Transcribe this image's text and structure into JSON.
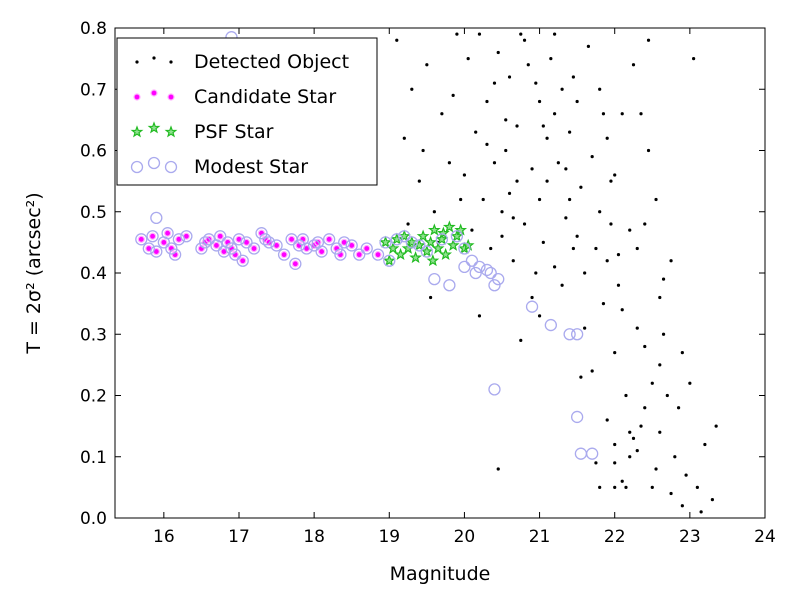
{
  "chart_data": {
    "type": "scatter",
    "x_label": "Magnitude",
    "y_label": "T = 2σ² (arcsec²)",
    "xlim": [
      15.35,
      24
    ],
    "ylim": [
      0,
      0.8
    ],
    "xticks": [
      16,
      17,
      18,
      19,
      20,
      21,
      22,
      23,
      24
    ],
    "yticks": [
      {
        "value": 0,
        "label": "0.0"
      },
      0.1,
      0.2,
      0.3,
      0.4,
      0.5,
      0.6,
      0.7,
      0.8
    ],
    "legend": "upper left",
    "series": [
      {
        "name": "Detected Object",
        "color": "#000000",
        "marker": "dot",
        "x": [
          19.1,
          19.2,
          19.3,
          19.4,
          19.5,
          19.6,
          19.7,
          19.8,
          19.9,
          19.95,
          19.25,
          19.45,
          19.65,
          19.85,
          20.0,
          20.05,
          20.1,
          20.15,
          20.2,
          20.25,
          20.3,
          20.35,
          20.4,
          20.45,
          20.5,
          20.55,
          20.6,
          20.65,
          20.7,
          20.75,
          20.3,
          20.4,
          20.5,
          20.6,
          20.7,
          20.8,
          20.85,
          20.9,
          20.95,
          21.0,
          20.8,
          20.9,
          21.0,
          21.05,
          21.1,
          21.15,
          21.2,
          21.25,
          21.3,
          21.35,
          21.0,
          21.1,
          21.2,
          21.3,
          21.4,
          21.45,
          21.5,
          21.55,
          21.6,
          21.65,
          21.4,
          21.5,
          21.6,
          21.7,
          21.75,
          21.8,
          21.85,
          21.9,
          21.95,
          22.0,
          21.7,
          21.8,
          21.9,
          22.0,
          22.05,
          22.1,
          22.15,
          22.2,
          22.25,
          22.3,
          22.0,
          22.1,
          22.2,
          22.3,
          22.35,
          22.4,
          22.45,
          22.5,
          22.55,
          22.6,
          21.8,
          21.9,
          22.0,
          22.1,
          22.2,
          22.25,
          22.3,
          22.4,
          22.5,
          22.6,
          22.6,
          22.65,
          22.7,
          22.75,
          22.8,
          22.85,
          22.9,
          22.95,
          23.0,
          23.1,
          23.15,
          23.2,
          23.3,
          23.35,
          22.75,
          22.9,
          23.05,
          22.55,
          22.45,
          22.35,
          20.45,
          21.75,
          22.0,
          22.65,
          20.2,
          19.55,
          21.2,
          20.75,
          21.55,
          22.15,
          20.55,
          20.95,
          21.35,
          21.85,
          22.05,
          20.65,
          21.05,
          21.45,
          21.95,
          22.4
        ],
        "values": [
          0.78,
          0.62,
          0.7,
          0.55,
          0.74,
          0.5,
          0.66,
          0.58,
          0.79,
          0.52,
          0.48,
          0.6,
          0.45,
          0.69,
          0.56,
          0.75,
          0.47,
          0.63,
          0.79,
          0.52,
          0.68,
          0.44,
          0.58,
          0.76,
          0.5,
          0.65,
          0.72,
          0.42,
          0.55,
          0.79,
          0.61,
          0.71,
          0.46,
          0.53,
          0.64,
          0.48,
          0.74,
          0.57,
          0.4,
          0.68,
          0.78,
          0.36,
          0.52,
          0.45,
          0.62,
          0.75,
          0.41,
          0.58,
          0.7,
          0.49,
          0.33,
          0.55,
          0.66,
          0.38,
          0.63,
          0.72,
          0.46,
          0.54,
          0.4,
          0.77,
          0.52,
          0.68,
          0.31,
          0.59,
          0.44,
          0.7,
          0.35,
          0.62,
          0.48,
          0.27,
          0.24,
          0.5,
          0.42,
          0.56,
          0.38,
          0.66,
          0.2,
          0.47,
          0.74,
          0.31,
          0.12,
          0.34,
          0.1,
          0.44,
          0.15,
          0.28,
          0.6,
          0.22,
          0.08,
          0.36,
          0.05,
          0.16,
          0.09,
          0.06,
          0.14,
          0.13,
          0.11,
          0.18,
          0.05,
          0.25,
          0.14,
          0.3,
          0.2,
          0.04,
          0.1,
          0.18,
          0.02,
          0.07,
          0.22,
          0.05,
          0.01,
          0.12,
          0.03,
          0.15,
          0.42,
          0.27,
          0.75,
          0.52,
          0.78,
          0.66,
          0.08,
          0.09,
          0.05,
          0.39,
          0.33,
          0.36,
          0.79,
          0.29,
          0.23,
          0.05,
          0.6,
          0.71,
          0.57,
          0.66,
          0.43,
          0.49,
          0.64,
          0.44,
          0.55,
          0.48
        ]
      },
      {
        "name": "Candidate Star",
        "color": "#ff00ff",
        "marker": "circle",
        "x": [
          15.7,
          15.8,
          15.85,
          15.9,
          16.0,
          16.05,
          16.1,
          16.15,
          16.2,
          16.3,
          16.5,
          16.55,
          16.6,
          16.7,
          16.75,
          16.8,
          16.85,
          16.9,
          16.95,
          17.0,
          17.05,
          17.1,
          17.2,
          17.3,
          17.35,
          17.4,
          17.5,
          17.6,
          17.7,
          17.75,
          17.8,
          17.85,
          17.9,
          18.0,
          18.05,
          18.1,
          18.2,
          18.3,
          18.35,
          18.4,
          18.5,
          18.6,
          18.7,
          18.85
        ],
        "values": [
          0.455,
          0.44,
          0.46,
          0.435,
          0.45,
          0.465,
          0.44,
          0.43,
          0.455,
          0.46,
          0.44,
          0.45,
          0.455,
          0.445,
          0.46,
          0.435,
          0.45,
          0.44,
          0.43,
          0.455,
          0.42,
          0.45,
          0.44,
          0.465,
          0.455,
          0.45,
          0.445,
          0.43,
          0.455,
          0.415,
          0.445,
          0.455,
          0.44,
          0.445,
          0.45,
          0.435,
          0.455,
          0.44,
          0.43,
          0.45,
          0.445,
          0.43,
          0.44,
          0.43
        ]
      },
      {
        "name": "PSF Star",
        "color": "#22bb22",
        "marker": "star",
        "x": [
          18.95,
          19.0,
          19.05,
          19.1,
          19.15,
          19.2,
          19.25,
          19.3,
          19.35,
          19.4,
          19.45,
          19.5,
          19.55,
          19.6,
          19.65,
          19.7,
          19.75,
          19.8,
          19.85,
          19.9,
          19.95,
          20.0,
          20.05,
          19.58,
          19.72
        ],
        "values": [
          0.45,
          0.42,
          0.44,
          0.455,
          0.43,
          0.46,
          0.44,
          0.45,
          0.425,
          0.445,
          0.46,
          0.435,
          0.45,
          0.47,
          0.44,
          0.455,
          0.43,
          0.475,
          0.445,
          0.46,
          0.47,
          0.44,
          0.445,
          0.42,
          0.465
        ]
      },
      {
        "name": "Modest Star",
        "color": "#aaaaee",
        "marker": "open-circle",
        "x": [
          15.7,
          15.8,
          15.85,
          15.9,
          16.0,
          16.05,
          16.1,
          16.15,
          16.2,
          16.3,
          16.5,
          16.55,
          16.6,
          16.7,
          16.75,
          16.8,
          16.85,
          16.9,
          16.95,
          17.0,
          17.05,
          17.1,
          17.2,
          17.3,
          17.35,
          17.4,
          17.5,
          17.6,
          17.7,
          17.75,
          17.8,
          17.85,
          17.9,
          18.0,
          18.05,
          18.1,
          18.2,
          18.3,
          18.35,
          18.4,
          18.5,
          18.6,
          18.7,
          18.85,
          18.95,
          19.0,
          19.1,
          19.2,
          19.3,
          19.4,
          19.5,
          19.7,
          19.9,
          20.0,
          15.9,
          16.9,
          19.6,
          19.8,
          20.0,
          20.1,
          20.15,
          20.2,
          20.3,
          20.35,
          20.4,
          20.45,
          20.9,
          21.15,
          21.4,
          21.5,
          20.4,
          21.5,
          21.55,
          21.7
        ],
        "values": [
          0.455,
          0.44,
          0.46,
          0.435,
          0.45,
          0.465,
          0.44,
          0.43,
          0.455,
          0.46,
          0.44,
          0.45,
          0.455,
          0.445,
          0.46,
          0.435,
          0.45,
          0.44,
          0.43,
          0.455,
          0.42,
          0.45,
          0.44,
          0.465,
          0.455,
          0.45,
          0.445,
          0.43,
          0.455,
          0.415,
          0.445,
          0.455,
          0.44,
          0.445,
          0.45,
          0.435,
          0.455,
          0.44,
          0.43,
          0.45,
          0.445,
          0.43,
          0.44,
          0.43,
          0.45,
          0.42,
          0.455,
          0.46,
          0.45,
          0.445,
          0.435,
          0.455,
          0.46,
          0.44,
          0.49,
          0.785,
          0.39,
          0.38,
          0.41,
          0.42,
          0.4,
          0.41,
          0.405,
          0.4,
          0.38,
          0.39,
          0.345,
          0.315,
          0.3,
          0.3,
          0.21,
          0.165,
          0.105,
          0.105
        ]
      }
    ]
  }
}
